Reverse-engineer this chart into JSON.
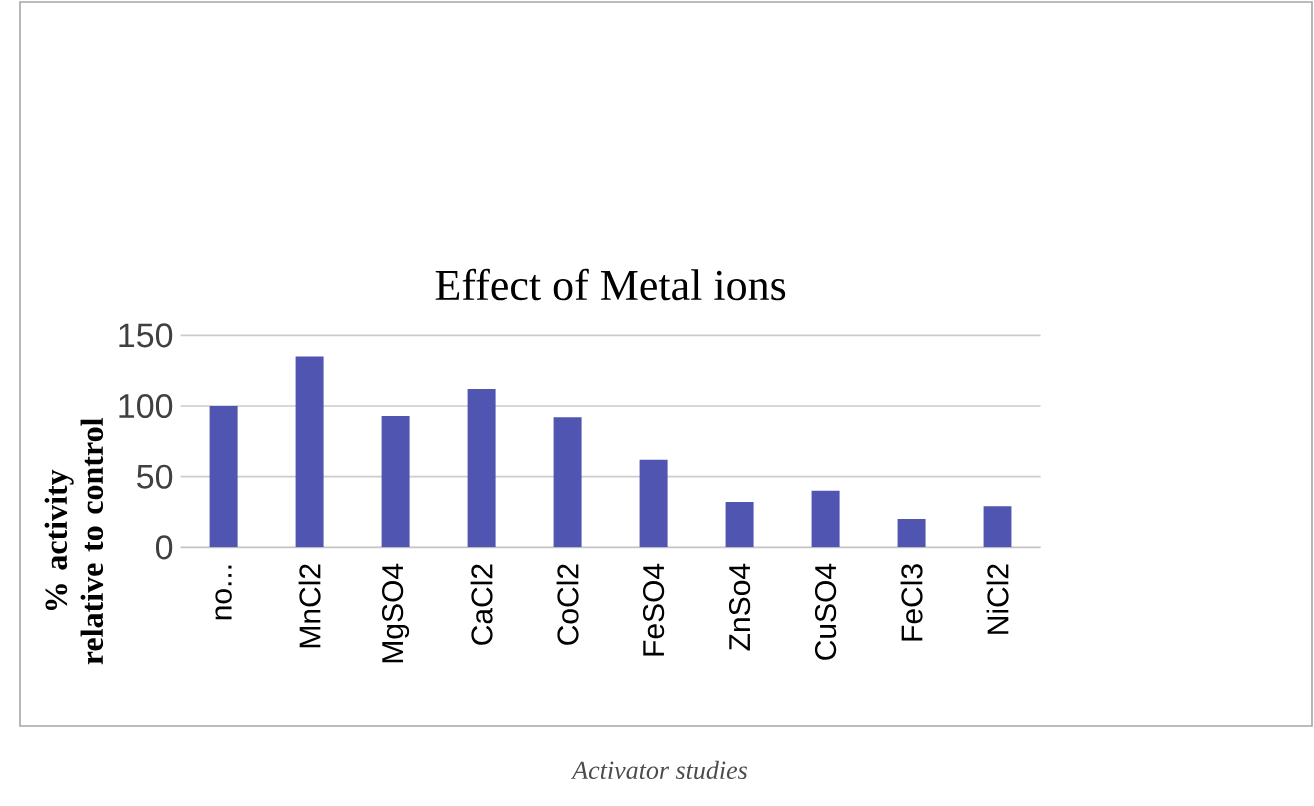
{
  "chart_data": {
    "type": "bar",
    "title": "Effect of Metal ions",
    "ylabel": "% activity relative to control",
    "categories": [
      "no...",
      "MnCl2",
      "MgSO4",
      "CaCl2",
      "CoCl2",
      "FeSO4",
      "ZnSo4",
      "CuSO4",
      "FeCl3",
      "NiCl2"
    ],
    "values": [
      100,
      135,
      93,
      112,
      92,
      62,
      32,
      40,
      20,
      29
    ],
    "color": "#4f55b0",
    "ylim": [
      0,
      150
    ],
    "yticks": [
      0,
      50,
      100,
      150
    ],
    "grid": "y",
    "annotations": [
      "Activator studies"
    ]
  }
}
